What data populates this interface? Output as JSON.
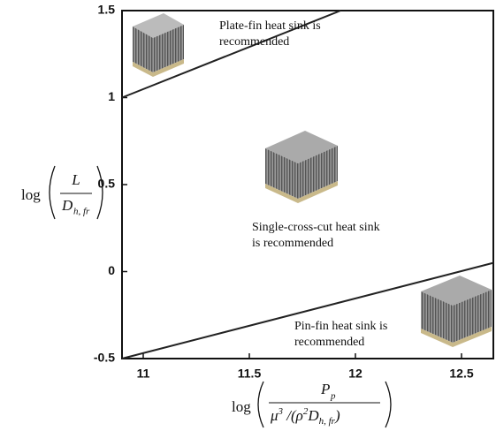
{
  "chart_data": {
    "type": "line",
    "xlim": [
      10.9,
      12.65
    ],
    "xticks": [
      11,
      11.5,
      12,
      12.5
    ],
    "ylim": [
      -0.5,
      1.5
    ],
    "yticks": [
      -0.5,
      0,
      0.5,
      1,
      1.5
    ],
    "series": [
      {
        "x": [
          10.9,
          11.93
        ],
        "values": [
          1.0,
          1.5
        ],
        "color": "#222222"
      },
      {
        "x": [
          10.9,
          12.65
        ],
        "values": [
          -0.5,
          0.05
        ],
        "color": "#222222"
      }
    ],
    "annotations": [
      [
        "Plate-fin heat sink is",
        "recommended"
      ],
      [
        "Single-cross-cut heat sink",
        "is recommended"
      ],
      [
        "Pin-fin heat sink is",
        "recommended"
      ]
    ],
    "ylabel": {
      "log": "log",
      "numerator": "L",
      "denominator": "D",
      "subscript": "h, fr"
    },
    "xlabel": {
      "log": "log",
      "numerator": "P",
      "numerator_sub": "p",
      "denominator_a": "μ",
      "sup_a": "3",
      "denominator_b": " /(ρ",
      "sup_b": "2",
      "denominator_c": "D",
      "subscript": "h, fr",
      "close": ")"
    }
  }
}
